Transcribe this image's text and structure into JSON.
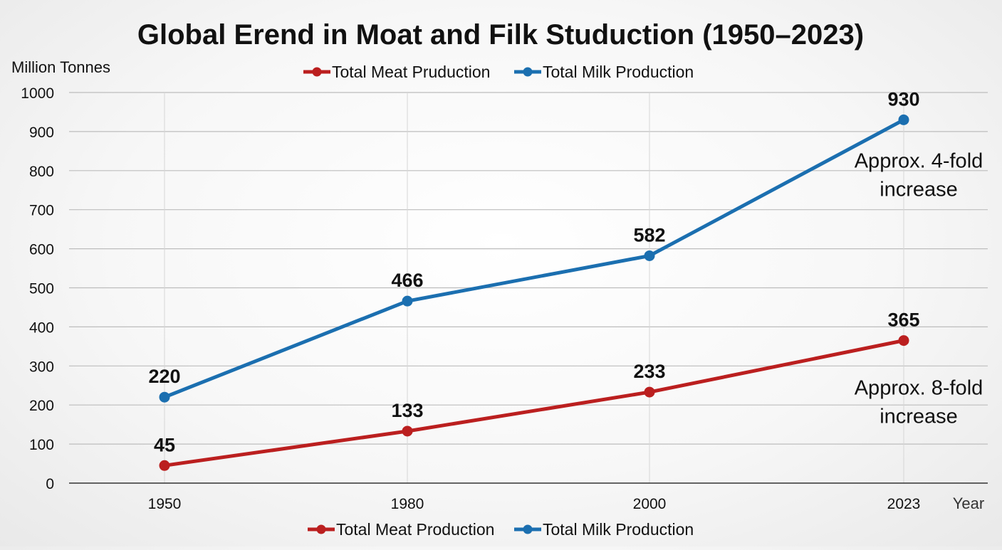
{
  "chart_data": {
    "type": "line",
    "title": "Global Erend in Moat and Filk Studuction (1950–2023)",
    "ylabel": "Million Tonnes",
    "xlabel": "Year",
    "categories": [
      "1950",
      "1980",
      "2000",
      "2023"
    ],
    "ylim": [
      0,
      1000
    ],
    "yticks": [
      0,
      100,
      200,
      300,
      400,
      500,
      600,
      700,
      800,
      900,
      1000
    ],
    "grid": true,
    "series": [
      {
        "name": "Total Meat Production",
        "legend_top_label": "Total Meat Pruduction",
        "color": "#bb1f1f",
        "values": [
          45,
          133,
          233,
          365
        ],
        "labels": [
          "45",
          "133",
          "233",
          "365"
        ]
      },
      {
        "name": "Total Milk Production",
        "legend_top_label": "Total Milk Production",
        "color": "#1b6fb0",
        "values": [
          220,
          466,
          582,
          930
        ],
        "labels": [
          "220",
          "466",
          "582",
          "930"
        ]
      }
    ],
    "annotations": [
      {
        "series": 1,
        "lines": [
          "Approx. 4-fold",
          "increase"
        ]
      },
      {
        "series": 0,
        "lines": [
          "Approx. 8-fold",
          "increase"
        ]
      }
    ],
    "legend_placement": "top and bottom"
  }
}
